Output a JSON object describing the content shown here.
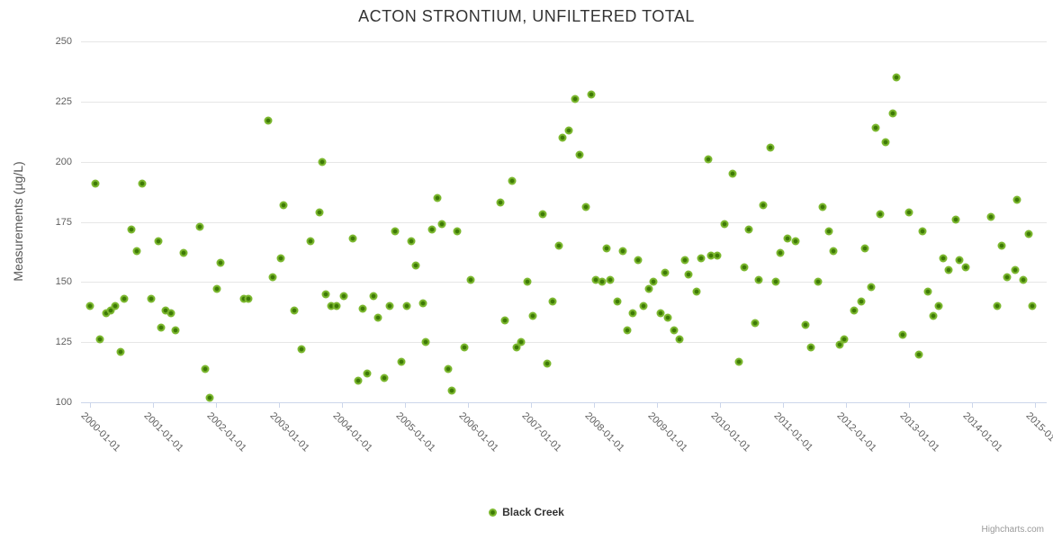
{
  "title": "ACTON STRONTIUM, UNFILTERED TOTAL",
  "credits_label": "Highcharts.com",
  "legend": {
    "series_label": "Black Creek"
  },
  "colors": {
    "marker_outer": "#7cb82f",
    "marker_center": "#3e7a06",
    "grid": "#e6e6e6",
    "axis_line": "#ccd6eb",
    "label_text": "#606060",
    "title_text": "#333333"
  },
  "chart_data": {
    "type": "scatter",
    "title": "ACTON STRONTIUM, UNFILTERED TOTAL",
    "xlabel": "",
    "ylabel": "Measurements (µg/L)",
    "x_ticks": [
      "2000-01-01",
      "2001-01-01",
      "2002-01-01",
      "2003-01-01",
      "2004-01-01",
      "2005-01-01",
      "2006-01-01",
      "2007-01-01",
      "2008-01-01",
      "2009-01-01",
      "2010-01-01",
      "2011-01-01",
      "2012-01-01",
      "2013-01-01",
      "2014-01-01",
      "2015-01-01"
    ],
    "y_ticks": [
      100,
      125,
      150,
      175,
      200,
      225,
      250
    ],
    "xlim_years": [
      2000,
      2015
    ],
    "ylim": [
      100,
      250
    ],
    "grid": true,
    "legend_position": "bottom-center",
    "series": [
      {
        "name": "Black Creek",
        "color": "#7cb82f",
        "points": [
          [
            2000.0,
            140
          ],
          [
            2000.09,
            191
          ],
          [
            2000.16,
            126
          ],
          [
            2000.26,
            137
          ],
          [
            2000.33,
            138
          ],
          [
            2000.4,
            140
          ],
          [
            2000.49,
            121
          ],
          [
            2000.54,
            143
          ],
          [
            2000.66,
            172
          ],
          [
            2000.74,
            163
          ],
          [
            2000.83,
            191
          ],
          [
            2000.97,
            143
          ],
          [
            2001.09,
            167
          ],
          [
            2001.13,
            131
          ],
          [
            2001.2,
            138
          ],
          [
            2001.29,
            137
          ],
          [
            2001.36,
            130
          ],
          [
            2001.49,
            162
          ],
          [
            2001.74,
            173
          ],
          [
            2001.83,
            114
          ],
          [
            2001.9,
            102
          ],
          [
            2002.01,
            147
          ],
          [
            2002.07,
            158
          ],
          [
            2002.44,
            143
          ],
          [
            2002.51,
            143
          ],
          [
            2002.83,
            217
          ],
          [
            2002.9,
            152
          ],
          [
            2003.03,
            160
          ],
          [
            2003.07,
            182
          ],
          [
            2003.24,
            138
          ],
          [
            2003.36,
            122
          ],
          [
            2003.5,
            167
          ],
          [
            2003.64,
            179
          ],
          [
            2003.68,
            200
          ],
          [
            2003.74,
            145
          ],
          [
            2003.83,
            140
          ],
          [
            2003.91,
            140
          ],
          [
            2004.03,
            144
          ],
          [
            2004.17,
            168
          ],
          [
            2004.26,
            109
          ],
          [
            2004.33,
            139
          ],
          [
            2004.4,
            112
          ],
          [
            2004.5,
            144
          ],
          [
            2004.57,
            135
          ],
          [
            2004.67,
            110
          ],
          [
            2004.76,
            140
          ],
          [
            2004.84,
            171
          ],
          [
            2004.94,
            117
          ],
          [
            2005.03,
            140
          ],
          [
            2005.1,
            167
          ],
          [
            2005.17,
            157
          ],
          [
            2005.28,
            141
          ],
          [
            2005.33,
            125
          ],
          [
            2005.43,
            172
          ],
          [
            2005.51,
            185
          ],
          [
            2005.59,
            174
          ],
          [
            2005.69,
            114
          ],
          [
            2005.74,
            105
          ],
          [
            2005.83,
            171
          ],
          [
            2005.94,
            123
          ],
          [
            2006.04,
            151
          ],
          [
            2006.51,
            183
          ],
          [
            2006.59,
            134
          ],
          [
            2006.7,
            192
          ],
          [
            2006.77,
            123
          ],
          [
            2006.84,
            125
          ],
          [
            2006.94,
            150
          ],
          [
            2007.03,
            136
          ],
          [
            2007.19,
            178
          ],
          [
            2007.26,
            116
          ],
          [
            2007.34,
            142
          ],
          [
            2007.44,
            165
          ],
          [
            2007.5,
            210
          ],
          [
            2007.6,
            213
          ],
          [
            2007.7,
            226
          ],
          [
            2007.77,
            203
          ],
          [
            2007.87,
            181
          ],
          [
            2007.96,
            228
          ],
          [
            2008.03,
            151
          ],
          [
            2008.13,
            150
          ],
          [
            2008.2,
            164
          ],
          [
            2008.26,
            151
          ],
          [
            2008.37,
            142
          ],
          [
            2008.46,
            163
          ],
          [
            2008.53,
            130
          ],
          [
            2008.61,
            137
          ],
          [
            2008.7,
            159
          ],
          [
            2008.79,
            140
          ],
          [
            2008.87,
            147
          ],
          [
            2008.94,
            150
          ],
          [
            2009.06,
            137
          ],
          [
            2009.13,
            154
          ],
          [
            2009.17,
            135
          ],
          [
            2009.27,
            130
          ],
          [
            2009.36,
            126
          ],
          [
            2009.44,
            159
          ],
          [
            2009.5,
            153
          ],
          [
            2009.63,
            146
          ],
          [
            2009.7,
            160
          ],
          [
            2009.81,
            201
          ],
          [
            2009.86,
            161
          ],
          [
            2009.96,
            161
          ],
          [
            2010.07,
            174
          ],
          [
            2010.2,
            195
          ],
          [
            2010.3,
            117
          ],
          [
            2010.39,
            156
          ],
          [
            2010.46,
            172
          ],
          [
            2010.56,
            133
          ],
          [
            2010.61,
            151
          ],
          [
            2010.69,
            182
          ],
          [
            2010.8,
            206
          ],
          [
            2010.89,
            150
          ],
          [
            2010.96,
            162
          ],
          [
            2011.07,
            168
          ],
          [
            2011.2,
            167
          ],
          [
            2011.36,
            132
          ],
          [
            2011.44,
            123
          ],
          [
            2011.56,
            150
          ],
          [
            2011.63,
            181
          ],
          [
            2011.73,
            171
          ],
          [
            2011.8,
            163
          ],
          [
            2011.9,
            124
          ],
          [
            2011.97,
            126
          ],
          [
            2012.13,
            138
          ],
          [
            2012.24,
            142
          ],
          [
            2012.3,
            164
          ],
          [
            2012.4,
            148
          ],
          [
            2012.47,
            214
          ],
          [
            2012.54,
            178
          ],
          [
            2012.63,
            208
          ],
          [
            2012.74,
            220
          ],
          [
            2012.8,
            235
          ],
          [
            2012.9,
            128
          ],
          [
            2013.0,
            179
          ],
          [
            2013.16,
            120
          ],
          [
            2013.21,
            171
          ],
          [
            2013.3,
            146
          ],
          [
            2013.39,
            136
          ],
          [
            2013.47,
            140
          ],
          [
            2013.54,
            160
          ],
          [
            2013.63,
            155
          ],
          [
            2013.74,
            176
          ],
          [
            2013.8,
            159
          ],
          [
            2013.9,
            156
          ],
          [
            2014.3,
            177
          ],
          [
            2014.4,
            140
          ],
          [
            2014.47,
            165
          ],
          [
            2014.56,
            152
          ],
          [
            2014.69,
            155
          ],
          [
            2014.71,
            184
          ],
          [
            2014.81,
            151
          ],
          [
            2014.9,
            170
          ],
          [
            2014.96,
            140
          ]
        ]
      }
    ]
  }
}
